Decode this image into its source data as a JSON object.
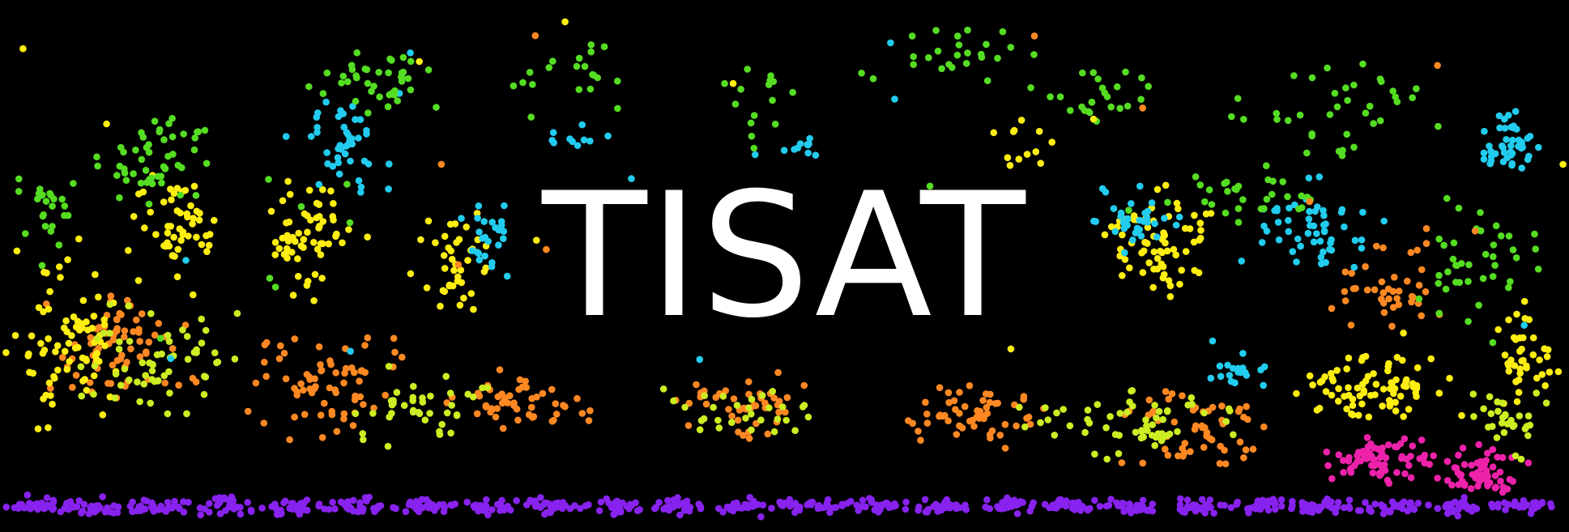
{
  "banner": {
    "title": "TISAT",
    "background": "#000000",
    "title_color": "#ffffff",
    "palette": {
      "green": "#55dd22",
      "cyan": "#22ccee",
      "yellow": "#ffee11",
      "lime": "#ccee22",
      "orange": "#ff8822",
      "magenta": "#ee22aa",
      "purple": "#8822ee"
    }
  }
}
